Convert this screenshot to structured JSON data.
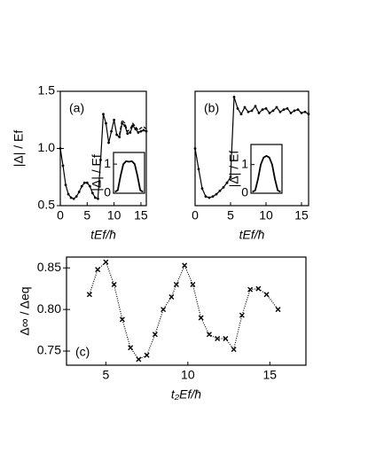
{
  "chart_data": [
    {
      "type": "line",
      "annotation": "(a)",
      "x_label": "tEf/ħ",
      "y_label": "|Δ| / Ef",
      "xlim": [
        0,
        16
      ],
      "ylim": [
        0.5,
        1.5
      ],
      "xticks": [
        0,
        5,
        10,
        15
      ],
      "yticks": [
        0.5,
        {
          "value": 1,
          "label": "1.0"
        },
        1.5
      ],
      "series": [
        {
          "color": "#000000",
          "line_style": "solid",
          "marker": "dot",
          "x": [
            0,
            0.5,
            1,
            1.5,
            2,
            2.5,
            3,
            3.5,
            4,
            4.5,
            5,
            5.5,
            6,
            6.5,
            7,
            7.5,
            8,
            8.5,
            9,
            9.5,
            10,
            10.5,
            11,
            11.5,
            12,
            12.5,
            13,
            13.5,
            14,
            14.5,
            15,
            15.5,
            16
          ],
          "values": [
            1.0,
            0.85,
            0.68,
            0.6,
            0.57,
            0.56,
            0.58,
            0.62,
            0.67,
            0.7,
            0.7,
            0.67,
            0.61,
            0.57,
            0.56,
            0.9,
            1.3,
            1.22,
            1.05,
            1.15,
            1.25,
            1.12,
            1.1,
            1.22,
            1.2,
            1.13,
            1.14,
            1.2,
            1.17,
            1.14,
            1.15,
            1.16,
            1.15
          ]
        },
        {
          "color": "#000000",
          "line_style": "dashed",
          "marker": "none",
          "x": [
            11,
            11.5,
            12,
            12.5,
            13,
            13.5,
            14,
            14.5,
            15,
            15.5,
            16
          ],
          "values": [
            1.12,
            1.25,
            1.22,
            1.15,
            1.17,
            1.22,
            1.19,
            1.16,
            1.18,
            1.19,
            1.17
          ]
        }
      ]
    },
    {
      "type": "line",
      "y_label": "|Δ| / Ef",
      "xlim": [
        -0.5,
        10.5
      ],
      "ylim": [
        0,
        1.4
      ],
      "yticks": [
        0,
        1
      ],
      "series": [
        {
          "color": "#000000",
          "line_style": "solid",
          "marker": "none",
          "x": [
            0,
            1,
            2,
            3,
            4,
            5,
            6,
            7,
            8,
            9,
            10
          ],
          "values": [
            0.05,
            0.1,
            0.6,
            1.0,
            1.1,
            1.08,
            1.1,
            1.0,
            0.6,
            0.1,
            0.05
          ]
        }
      ]
    },
    {
      "type": "line",
      "annotation": "(b)",
      "x_label": "tEf/ħ",
      "xlim": [
        0,
        16
      ],
      "ylim": [
        0.5,
        1.5
      ],
      "xticks": [
        0,
        5,
        10,
        15
      ],
      "series": [
        {
          "color": "#000000",
          "line_style": "solid",
          "marker": "dot",
          "x": [
            0,
            0.5,
            1,
            1.5,
            2,
            2.5,
            3,
            3.5,
            4,
            4.5,
            5,
            5.5,
            6,
            6.5,
            7,
            7.5,
            8,
            8.5,
            9,
            9.5,
            10,
            10.5,
            11,
            11.5,
            12,
            12.5,
            13,
            13.5,
            14,
            14.5,
            15,
            15.5,
            16
          ],
          "values": [
            1.0,
            0.82,
            0.65,
            0.58,
            0.57,
            0.58,
            0.6,
            0.63,
            0.66,
            0.7,
            0.75,
            1.45,
            1.35,
            1.3,
            1.36,
            1.32,
            1.33,
            1.37,
            1.31,
            1.34,
            1.35,
            1.31,
            1.33,
            1.36,
            1.32,
            1.34,
            1.35,
            1.31,
            1.33,
            1.34,
            1.31,
            1.32,
            1.3
          ]
        }
      ]
    },
    {
      "type": "line",
      "y_label": "|Δ| / Ef",
      "xlim": [
        -0.5,
        10.5
      ],
      "ylim": [
        0,
        1.7
      ],
      "yticks": [
        0,
        1
      ],
      "series": [
        {
          "color": "#000000",
          "line_style": "solid",
          "marker": "none",
          "x": [
            0,
            1,
            2,
            3,
            4,
            5,
            6,
            7,
            8,
            9,
            10
          ],
          "values": [
            0.05,
            0.1,
            0.5,
            1.0,
            1.25,
            1.3,
            1.25,
            1.0,
            0.5,
            0.1,
            0.05
          ]
        }
      ]
    },
    {
      "type": "line",
      "annotation": "(c)",
      "x_label": "t₂Ef/ħ",
      "y_label": "Δ∞ / Δeq",
      "xlim": [
        2.6,
        17.2
      ],
      "ylim": [
        0.733,
        0.863
      ],
      "xticks": [
        5,
        10,
        15
      ],
      "yticks": [
        0.75,
        {
          "value": 0.8,
          "label": "0.80"
        },
        0.85
      ],
      "series": [
        {
          "color": "#000000",
          "line_style": "dotted",
          "marker": "x",
          "x": [
            4,
            4.5,
            5,
            5.5,
            6,
            6.5,
            7,
            7.5,
            8,
            8.5,
            9,
            9.3,
            9.8,
            10.3,
            10.8,
            11.3,
            11.8,
            12.3,
            12.8,
            13.3,
            13.8,
            14.3,
            14.8,
            15.5
          ],
          "values": [
            0.818,
            0.848,
            0.857,
            0.83,
            0.788,
            0.754,
            0.74,
            0.745,
            0.77,
            0.8,
            0.815,
            0.83,
            0.853,
            0.83,
            0.79,
            0.77,
            0.765,
            0.765,
            0.752,
            0.793,
            0.824,
            0.825,
            0.818,
            0.8
          ]
        }
      ]
    }
  ]
}
